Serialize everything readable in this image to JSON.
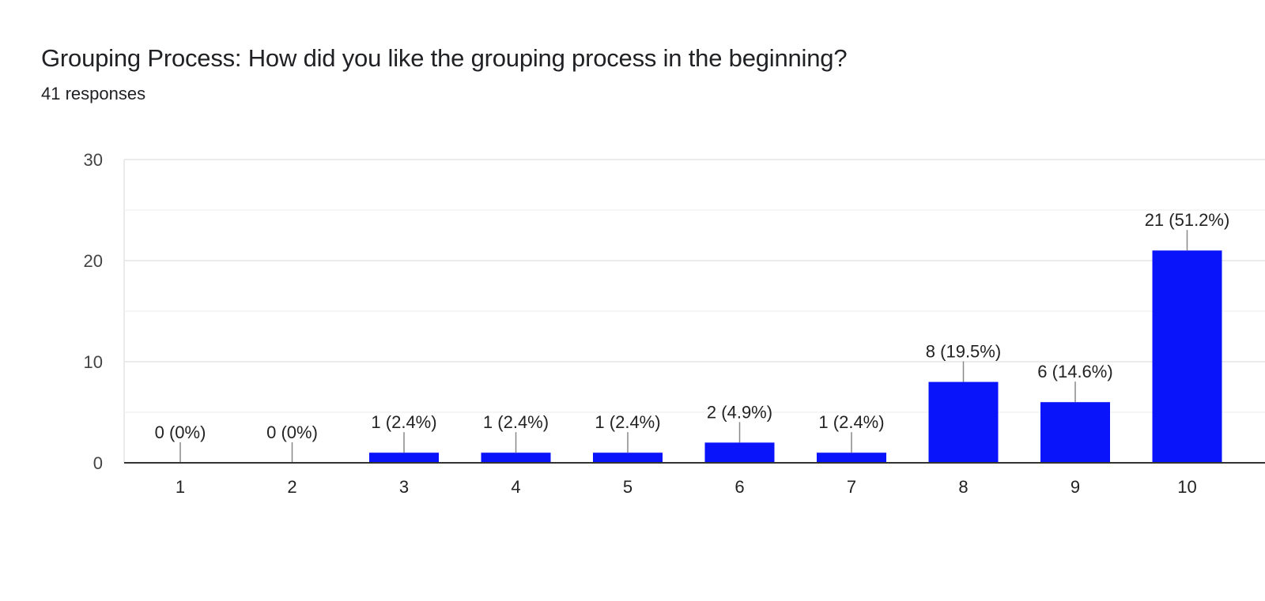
{
  "header": {
    "title": "Grouping Process: How did you like the grouping process in the beginning?",
    "responses": "41 responses"
  },
  "colors": {
    "bar": "#0a14fa",
    "grid": "#ebebeb",
    "axis": "#333333",
    "leader": "#888888"
  },
  "chart_data": {
    "type": "bar",
    "title": "Grouping Process: How did you like the grouping process in the beginning?",
    "subtitle": "41 responses",
    "xlabel": "",
    "ylabel": "",
    "categories": [
      "1",
      "2",
      "3",
      "4",
      "5",
      "6",
      "7",
      "8",
      "9",
      "10"
    ],
    "values": [
      0,
      0,
      1,
      1,
      1,
      2,
      1,
      8,
      6,
      21
    ],
    "percentages": [
      "0%",
      "0%",
      "2.4%",
      "2.4%",
      "2.4%",
      "4.9%",
      "2.4%",
      "19.5%",
      "14.6%",
      "51.2%"
    ],
    "data_labels": [
      "0 (0%)",
      "0 (0%)",
      "1 (2.4%)",
      "1 (2.4%)",
      "1 (2.4%)",
      "2 (4.9%)",
      "1 (2.4%)",
      "8 (19.5%)",
      "6 (14.6%)",
      "21 (51.2%)"
    ],
    "ylim": [
      0,
      30
    ],
    "yticks": [
      0,
      10,
      20,
      30
    ],
    "grid": true,
    "legend": null
  }
}
